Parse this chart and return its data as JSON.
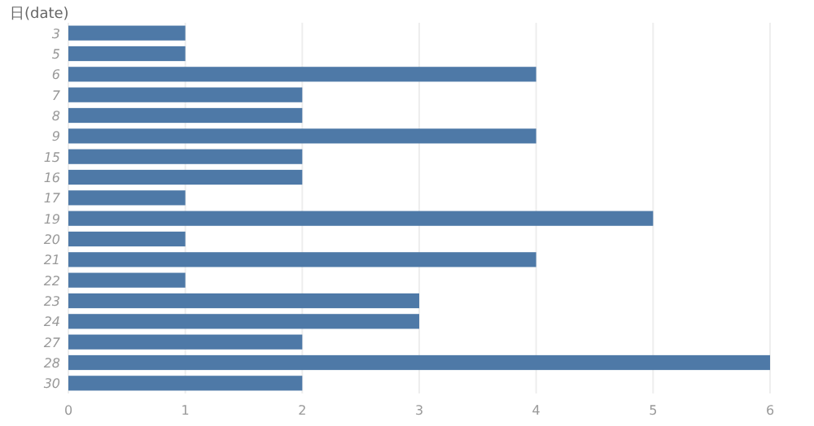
{
  "chart_data": {
    "type": "bar",
    "orientation": "horizontal",
    "title": "日(date)",
    "categories": [
      "3",
      "5",
      "6",
      "7",
      "8",
      "9",
      "15",
      "16",
      "17",
      "19",
      "20",
      "21",
      "22",
      "23",
      "24",
      "27",
      "28",
      "30"
    ],
    "values": [
      1,
      1,
      4,
      2,
      2,
      4,
      2,
      2,
      1,
      5,
      1,
      4,
      1,
      3,
      3,
      2,
      6,
      2
    ],
    "color": "#4e79a7",
    "xlim": [
      0,
      6
    ],
    "xticks": [
      0,
      1,
      2,
      3,
      4,
      5,
      6
    ],
    "grid": "x"
  }
}
